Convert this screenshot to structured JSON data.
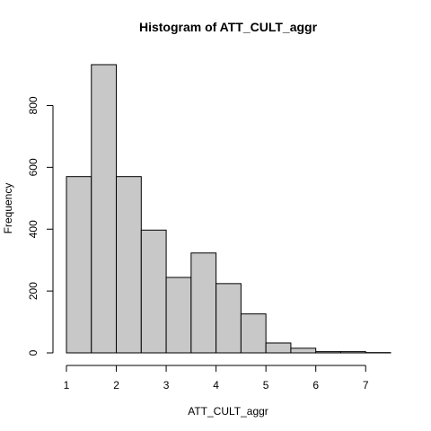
{
  "chart_data": {
    "type": "bar",
    "title": "Histogram of ATT_CULT_aggr",
    "xlabel": "ATT_CULT_aggr",
    "ylabel": "Frequency",
    "bins": [
      {
        "start": 1.0,
        "end": 1.5,
        "count": 570
      },
      {
        "start": 1.5,
        "end": 2.0,
        "count": 932
      },
      {
        "start": 2.0,
        "end": 2.5,
        "count": 570
      },
      {
        "start": 2.5,
        "end": 3.0,
        "count": 397
      },
      {
        "start": 3.0,
        "end": 3.5,
        "count": 244
      },
      {
        "start": 3.5,
        "end": 4.0,
        "count": 323
      },
      {
        "start": 4.0,
        "end": 4.5,
        "count": 224
      },
      {
        "start": 4.5,
        "end": 5.0,
        "count": 126
      },
      {
        "start": 5.0,
        "end": 5.5,
        "count": 32
      },
      {
        "start": 5.5,
        "end": 6.0,
        "count": 15
      },
      {
        "start": 6.0,
        "end": 6.5,
        "count": 4
      },
      {
        "start": 6.5,
        "end": 7.0,
        "count": 4
      },
      {
        "start": 7.0,
        "end": 7.5,
        "count": 1
      }
    ],
    "x_ticks": [
      1,
      2,
      3,
      4,
      5,
      6,
      7
    ],
    "y_ticks": [
      0,
      200,
      400,
      600,
      800
    ],
    "xlim": [
      1,
      7.5
    ],
    "ylim": [
      0,
      932
    ],
    "grid": false,
    "bar_color": "#c8c8c8",
    "border_color": "#000000"
  }
}
